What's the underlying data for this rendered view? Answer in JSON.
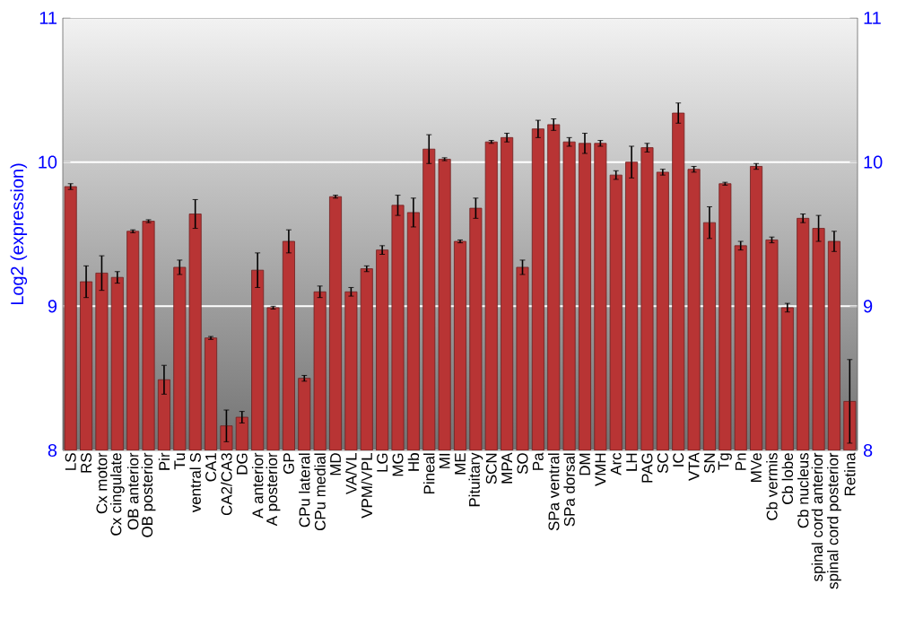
{
  "chart_data": {
    "type": "bar",
    "ylabel": "Log2 (expression)",
    "categories": [
      "LS",
      "RS",
      "Cx motor",
      "Cx cingulate",
      "OB anterior",
      "OB posterior",
      "Pir",
      "Tu",
      "ventral S",
      "CA1",
      "CA2/CA3",
      "DG",
      "A anterior",
      "A posterior",
      "GP",
      "CPu lateral",
      "CPu medial",
      "MD",
      "VA/VL",
      "VPM/VPL",
      "LG",
      "MG",
      "Hb",
      "Pineal",
      "MI",
      "ME",
      "Pituitary",
      "SCN",
      "MPA",
      "SO",
      "Pa",
      "SPa ventral",
      "SPa dorsal",
      "DM",
      "VMH",
      "Arc",
      "LH",
      "PAG",
      "SC",
      "IC",
      "VTA",
      "SN",
      "Tg",
      "Pn",
      "MVe",
      "Cb vermis",
      "Cb lobe",
      "Cb nucleus",
      "spinal cord anterior",
      "spinal cord posterior",
      "Retina"
    ],
    "values": [
      9.83,
      9.17,
      9.23,
      9.2,
      9.52,
      9.59,
      8.49,
      9.27,
      9.64,
      8.78,
      8.17,
      8.23,
      9.25,
      8.99,
      9.45,
      8.5,
      9.1,
      9.76,
      9.1,
      9.26,
      9.39,
      9.7,
      9.65,
      10.09,
      10.02,
      9.45,
      9.68,
      10.14,
      10.17,
      9.27,
      10.23,
      10.26,
      10.14,
      10.13,
      10.13,
      9.91,
      10.0,
      10.1,
      9.93,
      10.34,
      9.95,
      9.58,
      9.85,
      9.42,
      9.97,
      9.46,
      8.99,
      9.61,
      9.54,
      9.45,
      8.34
    ],
    "errors": [
      0.02,
      0.11,
      0.12,
      0.04,
      0.01,
      0.01,
      0.1,
      0.05,
      0.1,
      0.01,
      0.11,
      0.04,
      0.12,
      0.01,
      0.08,
      0.02,
      0.04,
      0.01,
      0.03,
      0.02,
      0.03,
      0.07,
      0.1,
      0.1,
      0.01,
      0.01,
      0.07,
      0.01,
      0.03,
      0.05,
      0.06,
      0.04,
      0.03,
      0.07,
      0.02,
      0.03,
      0.11,
      0.03,
      0.02,
      0.07,
      0.02,
      0.11,
      0.01,
      0.03,
      0.02,
      0.02,
      0.03,
      0.03,
      0.09,
      0.07,
      0.29
    ],
    "color": "#b83434",
    "ylim": [
      8,
      11
    ],
    "yticks": [
      8,
      9,
      10,
      11
    ],
    "y2lim": [
      8,
      11
    ],
    "y2ticks": [
      8,
      9,
      10,
      11
    ],
    "grid": "y"
  }
}
